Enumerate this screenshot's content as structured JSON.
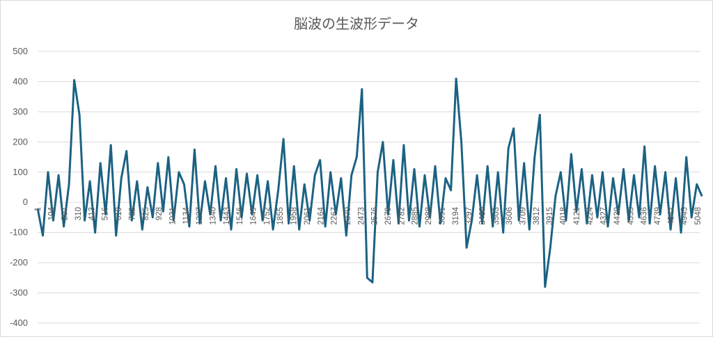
{
  "chart_data": {
    "type": "line",
    "title": "脳波の生波形データ",
    "xlabel": "",
    "ylabel": "",
    "ylim": [
      -400,
      500
    ],
    "yticks": [
      500,
      400,
      300,
      200,
      100,
      0,
      -100,
      -200,
      -300,
      -400
    ],
    "xtick_labels": [
      "1",
      "104",
      "207",
      "310",
      "413",
      "516",
      "619",
      "722",
      "825",
      "928",
      "1031",
      "1134",
      "1237",
      "1340",
      "1443",
      "1546",
      "1649",
      "1752",
      "1855",
      "1958",
      "2061",
      "2164",
      "2267",
      "2370",
      "2473",
      "2576",
      "2679",
      "2782",
      "2885",
      "2988",
      "3091",
      "3194",
      "3297",
      "3400",
      "3503",
      "3606",
      "3709",
      "3812",
      "3915",
      "4018",
      "4121",
      "4224",
      "4327",
      "4430",
      "4533",
      "4636",
      "4739",
      "4842",
      "4945",
      "5048"
    ],
    "x_step": 40,
    "x_start": 1,
    "x_max": 5100,
    "grid": true,
    "legend": "none",
    "series": [
      {
        "color": "#1b6283",
        "values": [
          -20,
          -110,
          100,
          -60,
          90,
          -80,
          60,
          405,
          290,
          -60,
          70,
          -100,
          130,
          -40,
          190,
          -110,
          80,
          170,
          -60,
          70,
          -90,
          50,
          -50,
          130,
          -30,
          150,
          -60,
          100,
          60,
          -80,
          175,
          -70,
          70,
          -40,
          120,
          -60,
          80,
          -90,
          110,
          -50,
          95,
          -40,
          90,
          -60,
          70,
          -90,
          40,
          210,
          -70,
          120,
          -90,
          60,
          -60,
          90,
          140,
          -80,
          100,
          -40,
          80,
          -110,
          90,
          150,
          375,
          -250,
          -265,
          100,
          200,
          -40,
          140,
          -70,
          190,
          -60,
          110,
          -80,
          90,
          -50,
          120,
          -70,
          80,
          40,
          410,
          200,
          -150,
          -60,
          90,
          -70,
          120,
          -80,
          100,
          -100,
          180,
          245,
          -60,
          130,
          -90,
          150,
          290,
          -280,
          -150,
          20,
          100,
          -60,
          160,
          -30,
          110,
          -70,
          90,
          -50,
          100,
          -80,
          80,
          -40,
          110,
          -60,
          90,
          -50,
          185,
          -70,
          120,
          -40,
          100,
          -90,
          80,
          -100,
          150,
          -50,
          60,
          20
        ]
      }
    ]
  }
}
